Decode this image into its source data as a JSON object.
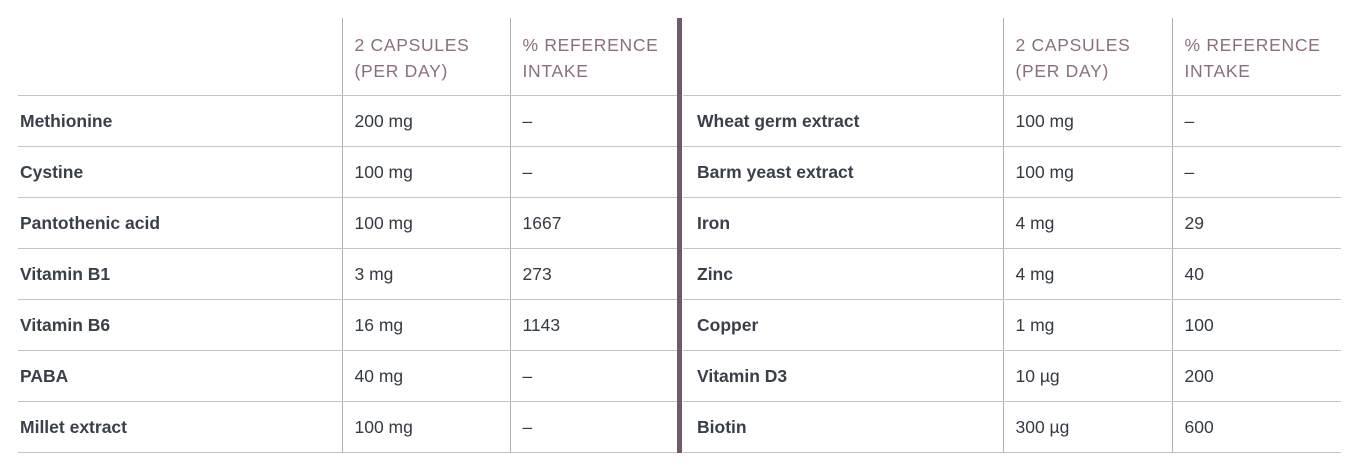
{
  "headers": {
    "dose": [
      "2 CAPSULES",
      "(PER DAY)"
    ],
    "ref": [
      "% REFERENCE",
      "INTAKE"
    ]
  },
  "left_rows": [
    {
      "name": "Methionine",
      "dose": "200 mg",
      "ref": "–"
    },
    {
      "name": "Cystine",
      "dose": "100 mg",
      "ref": "–"
    },
    {
      "name": "Pantothenic acid",
      "dose": "100 mg",
      "ref": "1667"
    },
    {
      "name": "Vitamin B1",
      "dose": "3 mg",
      "ref": "273"
    },
    {
      "name": "Vitamin B6",
      "dose": "16 mg",
      "ref": "1143"
    },
    {
      "name": "PABA",
      "dose": "40 mg",
      "ref": "–"
    },
    {
      "name": "Millet extract",
      "dose": "100 mg",
      "ref": "–"
    }
  ],
  "right_rows": [
    {
      "name": "Wheat germ extract",
      "dose": "100 mg",
      "ref": "–"
    },
    {
      "name": "Barm yeast extract",
      "dose": "100 mg",
      "ref": "–"
    },
    {
      "name": "Iron",
      "dose": "4 mg",
      "ref": "29"
    },
    {
      "name": "Zinc",
      "dose": "4 mg",
      "ref": "40"
    },
    {
      "name": "Copper",
      "dose": "1 mg",
      "ref": "100"
    },
    {
      "name": "Vitamin D3",
      "dose": "10 µg",
      "ref": "200"
    },
    {
      "name": "Biotin",
      "dose": "300 µg",
      "ref": "600"
    }
  ],
  "colors": {
    "header_text": "#8a6f81",
    "body_text": "#353b44",
    "divider": "#6f5a69",
    "rule": "#c9c1c6"
  }
}
